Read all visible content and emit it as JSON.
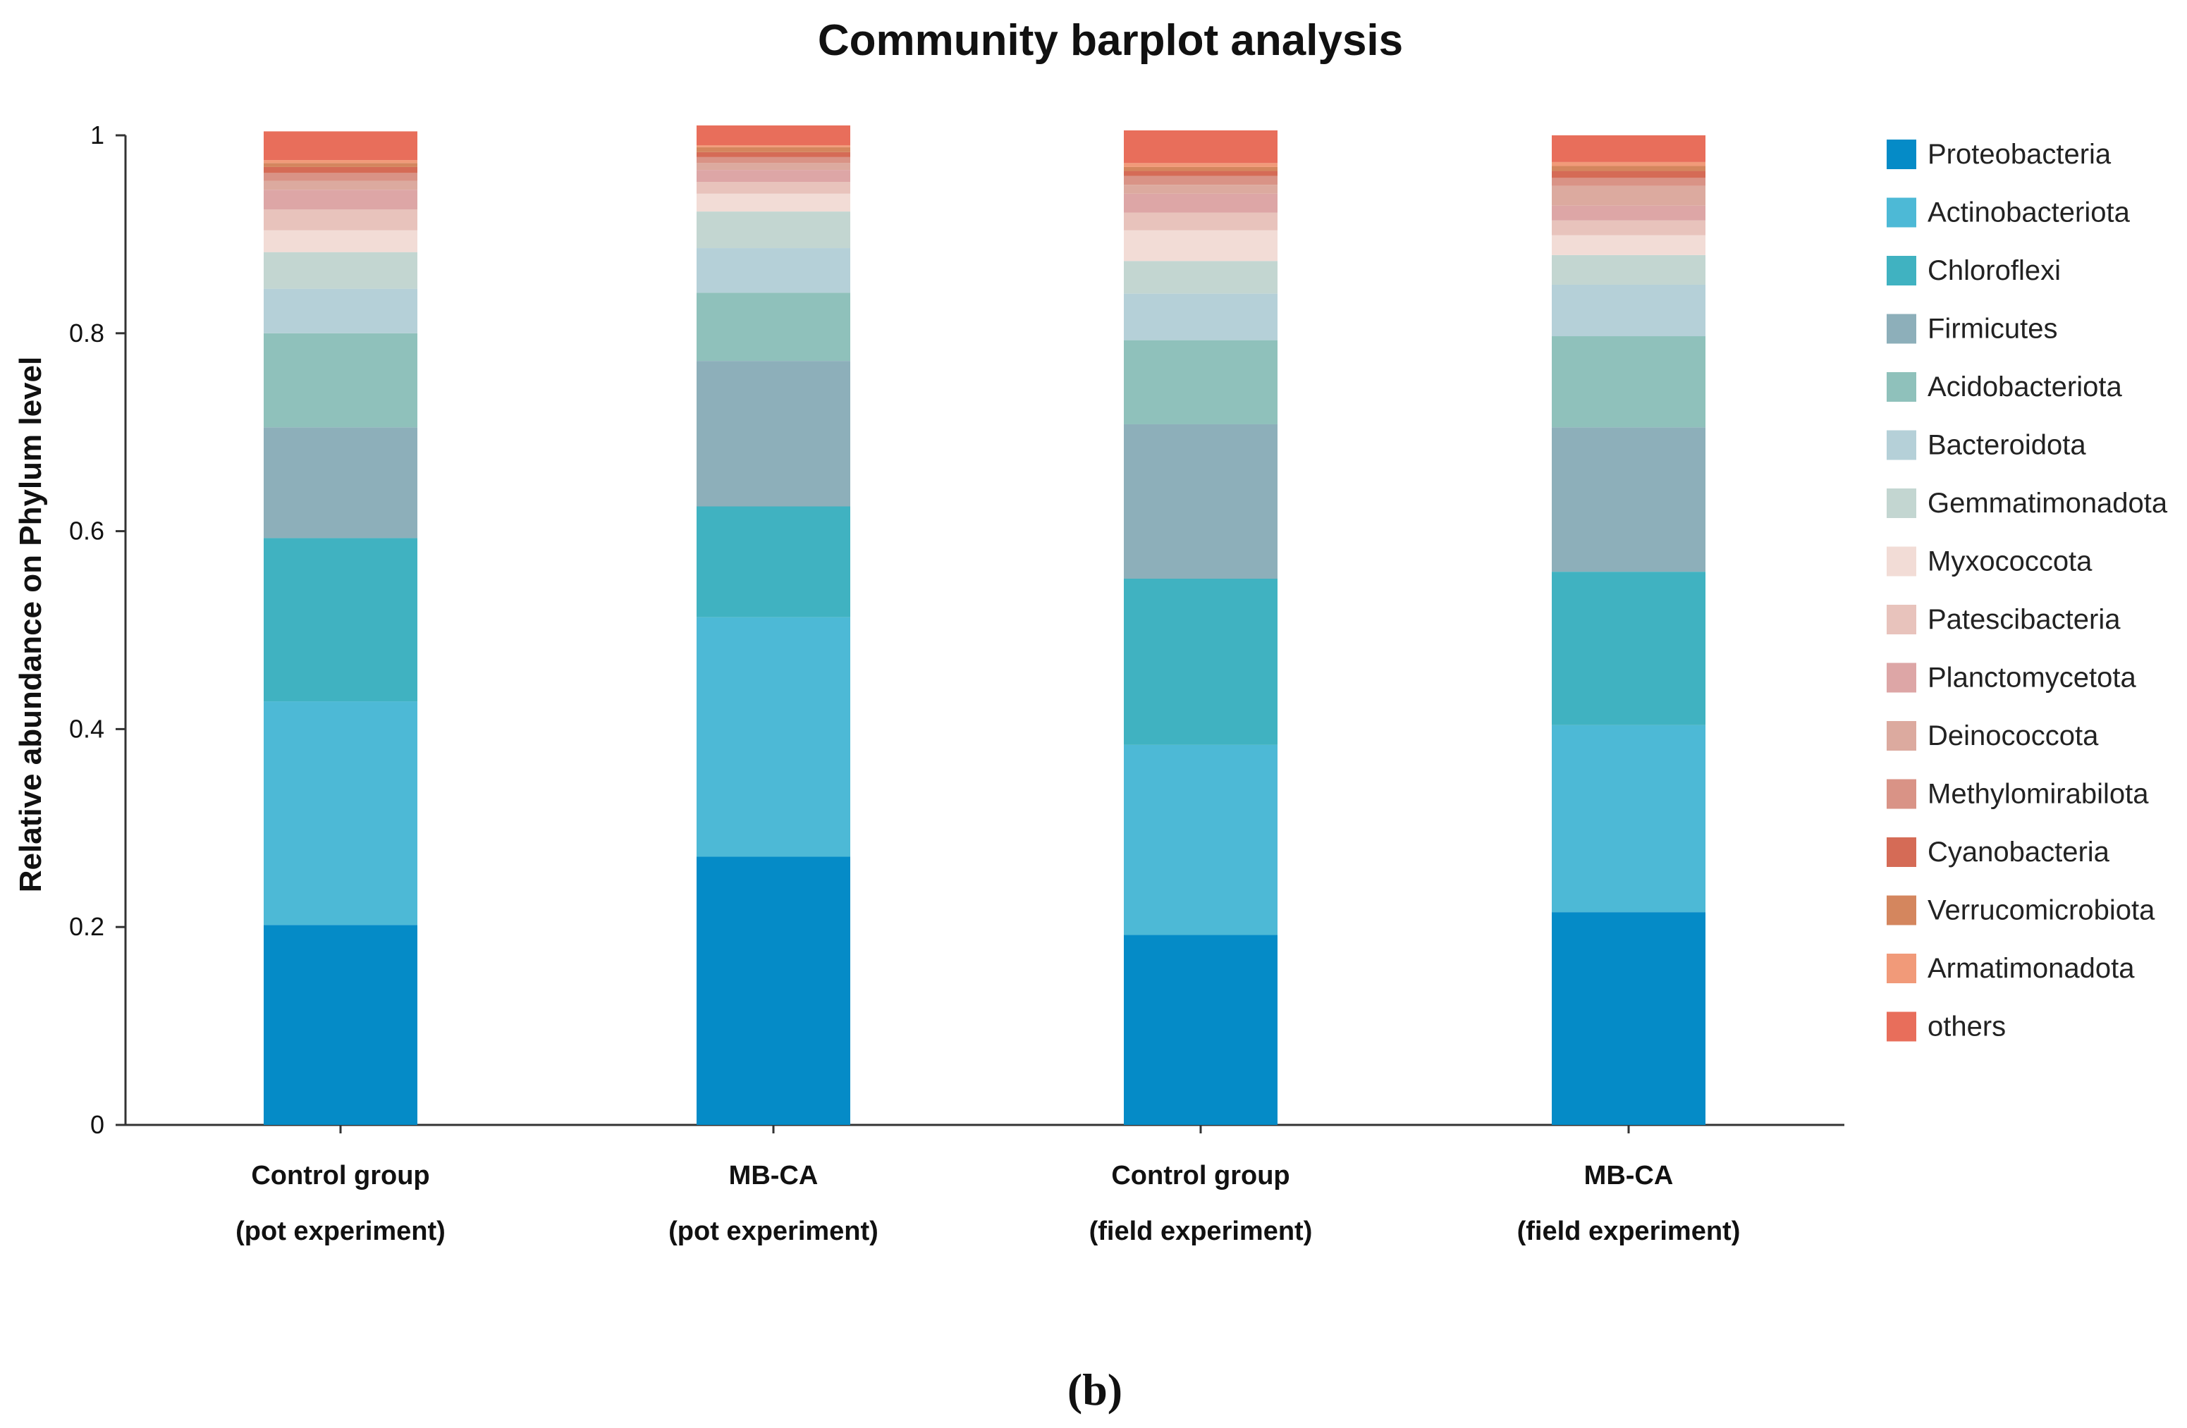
{
  "chart_data": {
    "type": "bar",
    "stacked": true,
    "title": "Community barplot analysis",
    "ylabel": "Relative abundance on Phylum level",
    "xlabel": "",
    "ylim": [
      0,
      1
    ],
    "yticks": [
      "0",
      "0.2",
      "0.4",
      "0.6",
      "0.8",
      "1"
    ],
    "categories": [
      {
        "line1": "Control group",
        "line2": "(pot experiment)"
      },
      {
        "line1": "MB-CA",
        "line2": "(pot experiment)"
      },
      {
        "line1": "Control group",
        "line2": "(field experiment)"
      },
      {
        "line1": "MB-CA",
        "line2": "(field experiment)"
      }
    ],
    "legend_position": "right",
    "series": [
      {
        "name": "Proteobacteria",
        "color": "#058bc7",
        "values": [
          0.202,
          0.271,
          0.192,
          0.215
        ]
      },
      {
        "name": "Actinobacteriota",
        "color": "#4db9d6",
        "values": [
          0.226,
          0.242,
          0.192,
          0.189
        ]
      },
      {
        "name": "Chloroflexi",
        "color": "#40b2c1",
        "values": [
          0.165,
          0.112,
          0.168,
          0.155
        ]
      },
      {
        "name": "Firmicutes",
        "color": "#8dafba",
        "values": [
          0.112,
          0.147,
          0.156,
          0.146
        ]
      },
      {
        "name": "Acidobacteriota",
        "color": "#8fc1bb",
        "values": [
          0.095,
          0.069,
          0.085,
          0.092
        ]
      },
      {
        "name": "Bacteroidota",
        "color": "#b5d0d8",
        "values": [
          0.045,
          0.045,
          0.047,
          0.052
        ]
      },
      {
        "name": "Gemmatimonadota",
        "color": "#c3d6d1",
        "values": [
          0.037,
          0.037,
          0.033,
          0.03
        ]
      },
      {
        "name": "Myxococcota",
        "color": "#f2dcd6",
        "values": [
          0.022,
          0.018,
          0.031,
          0.02
        ]
      },
      {
        "name": "Patescibacteria",
        "color": "#e8c3bc",
        "values": [
          0.021,
          0.012,
          0.018,
          0.015
        ]
      },
      {
        "name": "Planctomycetota",
        "color": "#dda6a6",
        "values": [
          0.02,
          0.012,
          0.019,
          0.015
        ]
      },
      {
        "name": "Deinococcota",
        "color": "#dcaa9f",
        "values": [
          0.009,
          0.007,
          0.009,
          0.02
        ]
      },
      {
        "name": "Methylomirabilota",
        "color": "#d99386",
        "values": [
          0.008,
          0.006,
          0.009,
          0.008
        ]
      },
      {
        "name": "Cyanobacteria",
        "color": "#d56b56",
        "values": [
          0.006,
          0.005,
          0.005,
          0.007
        ]
      },
      {
        "name": "Verrucomicrobiota",
        "color": "#d4865e",
        "values": [
          0.004,
          0.005,
          0.004,
          0.005
        ]
      },
      {
        "name": "Armatimonadota",
        "color": "#f19a79",
        "values": [
          0.003,
          0.002,
          0.004,
          0.004
        ]
      },
      {
        "name": "others",
        "color": "#e86e5b",
        "values": [
          0.029,
          0.02,
          0.033,
          0.027
        ]
      }
    ]
  },
  "caption": "(b)"
}
